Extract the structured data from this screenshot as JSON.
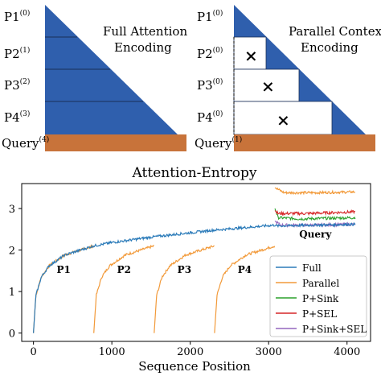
{
  "top_panels": {
    "full": {
      "title_line1": "Full Attention",
      "title_line2": "Encoding",
      "rows": [
        {
          "base": "P1",
          "sup": "(0)"
        },
        {
          "base": "P2",
          "sup": "(1)"
        },
        {
          "base": "P3",
          "sup": "(2)"
        },
        {
          "base": "P4",
          "sup": "(3)"
        },
        {
          "base": "Query",
          "sup": "(4)"
        }
      ]
    },
    "parallel": {
      "title_line1": "Parallel Context",
      "title_line2": "Encoding",
      "rows": [
        {
          "base": "P1",
          "sup": "(0)"
        },
        {
          "base": "P2",
          "sup": "(0)"
        },
        {
          "base": "P3",
          "sup": "(0)"
        },
        {
          "base": "P4",
          "sup": "(0)"
        },
        {
          "base": "Query",
          "sup": "(1)"
        }
      ],
      "mask_symbol": "×"
    },
    "colors": {
      "triangle": "#2f5fad",
      "query_band": "#c8733a",
      "mask": "#ffffff"
    }
  },
  "chart_data": {
    "type": "line",
    "title": "Attention-Entropy",
    "xlabel": "Sequence Position",
    "ylabel": "",
    "xlim": [
      -150,
      4300
    ],
    "ylim": [
      -0.2,
      3.6
    ],
    "xticks": [
      0,
      1000,
      2000,
      3000,
      4000
    ],
    "yticks": [
      0,
      1,
      2,
      3
    ],
    "segment_boundaries": [
      0,
      770,
      1540,
      2310,
      3080,
      4110
    ],
    "segment_labels": [
      "P1",
      "P2",
      "P3",
      "P4",
      "Query"
    ],
    "legend_position": "bottom-right",
    "series": [
      {
        "name": "Full",
        "color": "#2b7bb9",
        "points": [
          [
            0,
            0
          ],
          [
            30,
            0.9
          ],
          [
            100,
            1.35
          ],
          [
            200,
            1.62
          ],
          [
            400,
            1.88
          ],
          [
            770,
            2.1
          ],
          [
            1000,
            2.18
          ],
          [
            1540,
            2.32
          ],
          [
            2310,
            2.48
          ],
          [
            3080,
            2.6
          ],
          [
            3100,
            2.58
          ],
          [
            4110,
            2.62
          ]
        ]
      },
      {
        "name": "Parallel",
        "color": "#f29a3a",
        "segments": [
          [
            [
              0,
              0
            ],
            [
              30,
              0.9
            ],
            [
              100,
              1.35
            ],
            [
              200,
              1.62
            ],
            [
              400,
              1.88
            ],
            [
              770,
              2.1
            ]
          ],
          [
            [
              770,
              0
            ],
            [
              800,
              0.9
            ],
            [
              870,
              1.35
            ],
            [
              970,
              1.62
            ],
            [
              1170,
              1.88
            ],
            [
              1540,
              2.1
            ]
          ],
          [
            [
              1540,
              0
            ],
            [
              1570,
              0.9
            ],
            [
              1640,
              1.35
            ],
            [
              1740,
              1.62
            ],
            [
              1940,
              1.88
            ],
            [
              2310,
              2.1
            ]
          ],
          [
            [
              2310,
              0
            ],
            [
              2340,
              0.9
            ],
            [
              2410,
              1.35
            ],
            [
              2510,
              1.62
            ],
            [
              2710,
              1.88
            ],
            [
              3080,
              2.1
            ]
          ],
          [
            [
              3080,
              3.5
            ],
            [
              3200,
              3.38
            ],
            [
              3600,
              3.38
            ],
            [
              4110,
              3.4
            ]
          ]
        ]
      },
      {
        "name": "P+Sink",
        "color": "#2ca02c",
        "query_points": [
          [
            3080,
            3.0
          ],
          [
            3120,
            2.78
          ],
          [
            3400,
            2.75
          ],
          [
            4110,
            2.78
          ]
        ]
      },
      {
        "name": "P+SEL",
        "color": "#d62728",
        "query_points": [
          [
            3080,
            2.95
          ],
          [
            3120,
            2.88
          ],
          [
            3500,
            2.88
          ],
          [
            4110,
            2.92
          ]
        ]
      },
      {
        "name": "P+Sink+SEL",
        "color": "#9467bd",
        "query_points": [
          [
            3080,
            2.7
          ],
          [
            3150,
            2.6
          ],
          [
            3600,
            2.6
          ],
          [
            4110,
            2.62
          ]
        ]
      }
    ]
  }
}
